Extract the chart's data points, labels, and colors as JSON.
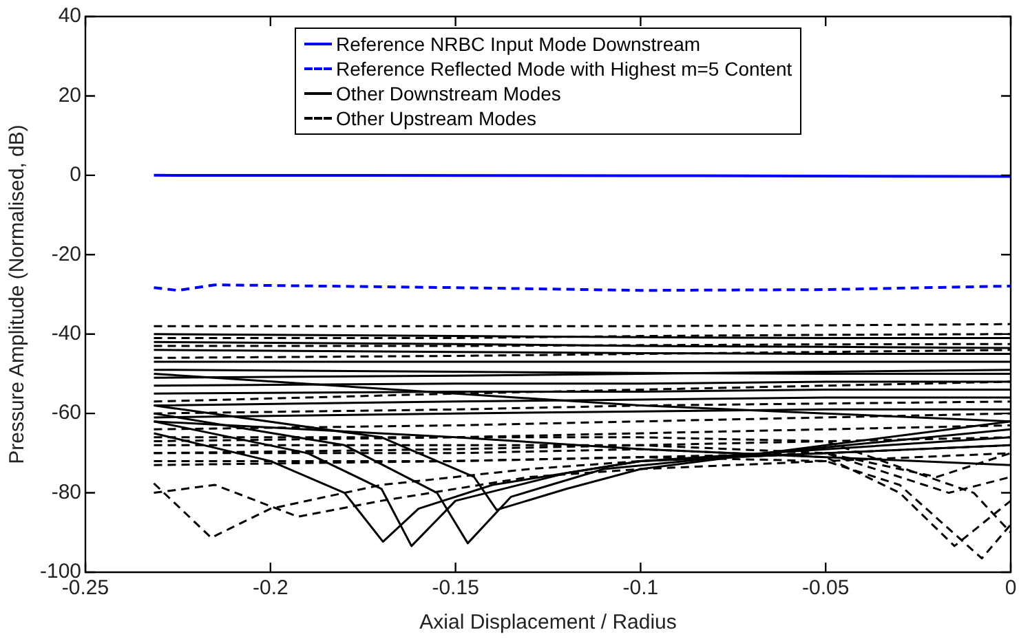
{
  "chart_data": {
    "type": "line",
    "xlabel": "Axial Displacement / Radius",
    "ylabel": "Pressure Amplitude (Normalised, dB)",
    "xlim": [
      -0.25,
      0
    ],
    "xticks": [
      -0.25,
      -0.2,
      -0.15,
      -0.1,
      -0.05,
      0
    ],
    "ylim": [
      -100,
      40
    ],
    "yticks": [
      -100,
      -80,
      -60,
      -40,
      -20,
      0,
      20,
      40
    ],
    "grid": false,
    "legend": "top",
    "series": [
      {
        "name": "Reference NRBC Input Mode Downstream",
        "color": "#0000ff",
        "line_style": "solid",
        "x": [
          -0.2315,
          -0.1,
          0
        ],
        "values": [
          0,
          -0.1,
          -0.3
        ]
      },
      {
        "name": "Reference Reflected Mode with Highest m=5 Content",
        "color": "#0000ff",
        "line_style": "dashed",
        "x": [
          -0.2315,
          -0.225,
          -0.215,
          -0.15,
          -0.1,
          -0.05,
          0
        ],
        "values": [
          -28.3,
          -29,
          -27.6,
          -28.3,
          -29,
          -28.8,
          -27.9
        ]
      },
      {
        "name": "Other Downstream Modes",
        "color": "#000000",
        "line_style": "solid",
        "x": [
          -0.2315,
          -0.15,
          -0.1,
          -0.05,
          0
        ],
        "values": [
          -40,
          -40.5,
          -40.8,
          -41,
          -41
        ]
      },
      {
        "name": "Other Upstream Modes",
        "color": "#000000",
        "line_style": "dashed",
        "x": [
          -0.2315,
          -0.15,
          -0.1,
          -0.05,
          0
        ],
        "values": [
          -38,
          -38,
          -38,
          -37.8,
          -37.5
        ]
      },
      {
        "color": "#000000",
        "line_style": "solid",
        "x": [
          -0.2315,
          -0.15,
          -0.1,
          -0.05,
          0
        ],
        "values": [
          -42,
          -42.5,
          -43,
          -43.2,
          -43.5
        ]
      },
      {
        "color": "#000000",
        "line_style": "solid",
        "x": [
          -0.2315,
          -0.15,
          -0.1,
          -0.05,
          0
        ],
        "values": [
          -44,
          -44.5,
          -44.8,
          -45,
          -45
        ]
      },
      {
        "color": "#000000",
        "line_style": "solid",
        "x": [
          -0.2315,
          -0.15,
          -0.1,
          -0.05,
          0
        ],
        "values": [
          -47,
          -47,
          -47,
          -47,
          -47
        ]
      },
      {
        "color": "#000000",
        "line_style": "solid",
        "x": [
          -0.2315,
          -0.15,
          -0.1,
          -0.05,
          0
        ],
        "values": [
          -49,
          -49.5,
          -49.8,
          -50,
          -50
        ]
      },
      {
        "color": "#000000",
        "line_style": "solid",
        "x": [
          -0.2315,
          -0.15,
          -0.1,
          -0.05,
          0
        ],
        "values": [
          -51,
          -50.5,
          -50,
          -49.5,
          -49
        ]
      },
      {
        "color": "#000000",
        "line_style": "solid",
        "x": [
          -0.2315,
          -0.15,
          -0.1,
          -0.05,
          0
        ],
        "values": [
          -53,
          -52.5,
          -52.5,
          -52,
          -52
        ]
      },
      {
        "color": "#000000",
        "line_style": "solid",
        "x": [
          -0.2315,
          -0.15,
          -0.1,
          -0.05,
          0
        ],
        "values": [
          -55,
          -54.5,
          -54.5,
          -54,
          -54
        ]
      },
      {
        "color": "#000000",
        "line_style": "solid",
        "x": [
          -0.2315,
          -0.15,
          -0.1,
          -0.05,
          0
        ],
        "values": [
          -58,
          -57,
          -56.5,
          -56,
          -56
        ]
      },
      {
        "color": "#000000",
        "line_style": "solid",
        "x": [
          -0.2315,
          -0.15,
          -0.1,
          -0.05,
          0
        ],
        "values": [
          -61,
          -60,
          -59.5,
          -59,
          -59
        ]
      },
      {
        "color": "#000000",
        "line_style": "solid",
        "x": [
          -0.2315,
          -0.15,
          -0.1,
          -0.05,
          0
        ],
        "values": [
          -50,
          -55,
          -58,
          -60,
          -62
        ]
      },
      {
        "color": "#000000",
        "line_style": "solid",
        "x": [
          -0.2315,
          -0.15,
          -0.1,
          -0.05,
          0
        ],
        "values": [
          -62,
          -66,
          -69,
          -71,
          -73
        ]
      },
      {
        "color": "#000000",
        "line_style": "solid",
        "x": [
          -0.2315,
          -0.2,
          -0.18,
          -0.1696,
          -0.16,
          -0.14,
          -0.1,
          0
        ],
        "values": [
          -65,
          -72,
          -80,
          -92.3,
          -84,
          -78,
          -72,
          -68
        ]
      },
      {
        "color": "#000000",
        "line_style": "solid",
        "x": [
          -0.2315,
          -0.19,
          -0.17,
          -0.1619,
          -0.15,
          -0.12,
          -0.1,
          0
        ],
        "values": [
          -62,
          -70,
          -79,
          -93.4,
          -82,
          -75,
          -72,
          -66
        ]
      },
      {
        "color": "#000000",
        "line_style": "solid",
        "x": [
          -0.2315,
          -0.18,
          -0.155,
          -0.1467,
          -0.135,
          -0.11,
          0
        ],
        "values": [
          -60,
          -68,
          -80,
          -92.7,
          -81,
          -74,
          -64
        ]
      },
      {
        "color": "#000000",
        "line_style": "solid",
        "x": [
          -0.2315,
          -0.17,
          -0.145,
          -0.1389,
          -0.12,
          -0.1,
          0
        ],
        "values": [
          -58,
          -66,
          -76,
          -84.3,
          -79,
          -74,
          -62
        ]
      },
      {
        "color": "#000000",
        "line_style": "dashed",
        "x": [
          -0.2315,
          -0.15,
          -0.1,
          -0.05,
          0
        ],
        "values": [
          -41,
          -41,
          -40.5,
          -40.2,
          -40
        ]
      },
      {
        "color": "#000000",
        "line_style": "dashed",
        "x": [
          -0.2315,
          -0.15,
          -0.1,
          -0.05,
          0
        ],
        "values": [
          -43,
          -43,
          -42.8,
          -42.6,
          -42.5
        ]
      },
      {
        "color": "#000000",
        "line_style": "dashed",
        "x": [
          -0.2315,
          -0.15,
          -0.1,
          -0.05,
          0
        ],
        "values": [
          -46,
          -45.5,
          -45,
          -44.5,
          -44
        ]
      },
      {
        "color": "#000000",
        "line_style": "dashed",
        "x": [
          -0.2315,
          -0.15,
          -0.1,
          -0.05,
          0
        ],
        "values": [
          -57,
          -55,
          -54,
          -53,
          -52
        ]
      },
      {
        "color": "#000000",
        "line_style": "dashed",
        "x": [
          -0.2315,
          -0.15,
          -0.1,
          -0.05,
          0
        ],
        "values": [
          -60,
          -59,
          -58,
          -57.5,
          -57
        ]
      },
      {
        "color": "#000000",
        "line_style": "dashed",
        "x": [
          -0.2315,
          -0.15,
          -0.1,
          -0.05,
          0
        ],
        "values": [
          -64,
          -63,
          -62,
          -61,
          -60
        ]
      },
      {
        "color": "#000000",
        "line_style": "dashed",
        "x": [
          -0.2315,
          -0.15,
          -0.1,
          -0.05,
          0
        ],
        "values": [
          -67,
          -66,
          -65,
          -64,
          -63
        ]
      },
      {
        "color": "#000000",
        "line_style": "dashed",
        "x": [
          -0.2315,
          -0.15,
          -0.1,
          -0.05,
          0
        ],
        "values": [
          -70,
          -69,
          -68,
          -67,
          -66
        ]
      },
      {
        "color": "#000000",
        "line_style": "dashed",
        "x": [
          -0.2315,
          -0.15,
          -0.1,
          -0.05,
          -0.02,
          0
        ],
        "values": [
          -73,
          -72,
          -71,
          -70,
          -76,
          -70
        ]
      },
      {
        "color": "#000000",
        "line_style": "dashed",
        "x": [
          -0.2315,
          -0.216,
          -0.2,
          -0.17,
          -0.13,
          -0.1,
          -0.05,
          0
        ],
        "values": [
          -77.6,
          -91.3,
          -84,
          -78,
          -74,
          -72,
          -70,
          -68
        ]
      },
      {
        "color": "#000000",
        "line_style": "dashed",
        "x": [
          -0.2315,
          -0.215,
          -0.1926,
          -0.17,
          -0.13,
          -0.1,
          -0.05,
          0
        ],
        "values": [
          -80,
          -78,
          -86,
          -82,
          -76,
          -74,
          -72,
          -70
        ]
      },
      {
        "color": "#000000",
        "line_style": "dashed",
        "x": [
          -0.2315,
          -0.15,
          -0.1,
          -0.05,
          -0.03,
          -0.0078,
          0
        ],
        "values": [
          -72,
          -72,
          -71,
          -72,
          -78,
          -96.5,
          -88
        ]
      },
      {
        "color": "#000000",
        "line_style": "dashed",
        "x": [
          -0.2315,
          -0.15,
          -0.1,
          -0.05,
          -0.03,
          -0.0152,
          0
        ],
        "values": [
          -70,
          -70,
          -69,
          -71,
          -80,
          -93.4,
          -82
        ]
      },
      {
        "color": "#000000",
        "line_style": "dashed",
        "x": [
          -0.2315,
          -0.15,
          -0.1,
          -0.05,
          -0.0167,
          0
        ],
        "values": [
          -68,
          -68,
          -68,
          -70,
          -80,
          -76
        ]
      },
      {
        "color": "#000000",
        "line_style": "dashed",
        "x": [
          -0.2315,
          -0.15,
          -0.1,
          -0.05,
          -0.01,
          0
        ],
        "values": [
          -66,
          -66,
          -66,
          -67,
          -80,
          -90
        ]
      }
    ]
  }
}
